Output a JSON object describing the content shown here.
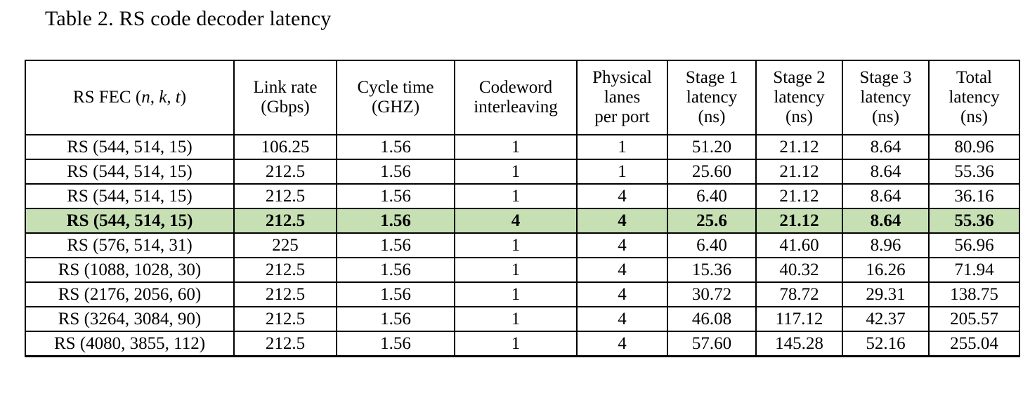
{
  "page": {
    "title": "Table 2. RS code decoder latency",
    "background_color": "#ffffff",
    "text_color": "#000000"
  },
  "table": {
    "highlight_color": "#c6e0b4",
    "border_color": "#000000",
    "columns": [
      {
        "prefix": "RS FEC (",
        "italic": "n, k, t",
        "suffix": ")"
      },
      "Link rate\n(Gbps)",
      "Cycle time\n(GHZ)",
      "Codeword\ninterleaving",
      "Physical\nlanes\nper port",
      "Stage 1\nlatency\n(ns)",
      "Stage 2\nlatency\n(ns)",
      "Stage 3\nlatency\n(ns)",
      "Total\nlatency\n(ns)"
    ],
    "column_ids": [
      "rs-fec",
      "link-rate",
      "cycle-time",
      "codeword-interleaving",
      "physical-lanes-per-port",
      "stage1-latency",
      "stage2-latency",
      "stage3-latency",
      "total-latency"
    ],
    "rows": [
      {
        "highlight": false,
        "cells": [
          "RS (544, 514, 15)",
          "106.25",
          "1.56",
          "1",
          "1",
          "51.20",
          "21.12",
          "8.64",
          "80.96"
        ]
      },
      {
        "highlight": false,
        "cells": [
          "RS (544, 514, 15)",
          "212.5",
          "1.56",
          "1",
          "1",
          "25.60",
          "21.12",
          "8.64",
          "55.36"
        ]
      },
      {
        "highlight": false,
        "cells": [
          "RS (544, 514, 15)",
          "212.5",
          "1.56",
          "1",
          "4",
          "6.40",
          "21.12",
          "8.64",
          "36.16"
        ]
      },
      {
        "highlight": true,
        "cells": [
          "RS (544, 514, 15)",
          "212.5",
          "1.56",
          "4",
          "4",
          "25.6",
          "21.12",
          "8.64",
          "55.36"
        ]
      },
      {
        "highlight": false,
        "cells": [
          "RS (576, 514, 31)",
          "225",
          "1.56",
          "1",
          "4",
          "6.40",
          "41.60",
          "8.96",
          "56.96"
        ]
      },
      {
        "highlight": false,
        "cells": [
          "RS (1088, 1028, 30)",
          "212.5",
          "1.56",
          "1",
          "4",
          "15.36",
          "40.32",
          "16.26",
          "71.94"
        ]
      },
      {
        "highlight": false,
        "cells": [
          "RS (2176, 2056, 60)",
          "212.5",
          "1.56",
          "1",
          "4",
          "30.72",
          "78.72",
          "29.31",
          "138.75"
        ]
      },
      {
        "highlight": false,
        "cells": [
          "RS (3264, 3084, 90)",
          "212.5",
          "1.56",
          "1",
          "4",
          "46.08",
          "117.12",
          "42.37",
          "205.57"
        ]
      },
      {
        "highlight": false,
        "cells": [
          "RS (4080, 3855, 112)",
          "212.5",
          "1.56",
          "1",
          "4",
          "57.60",
          "145.28",
          "52.16",
          "255.04"
        ]
      }
    ]
  }
}
